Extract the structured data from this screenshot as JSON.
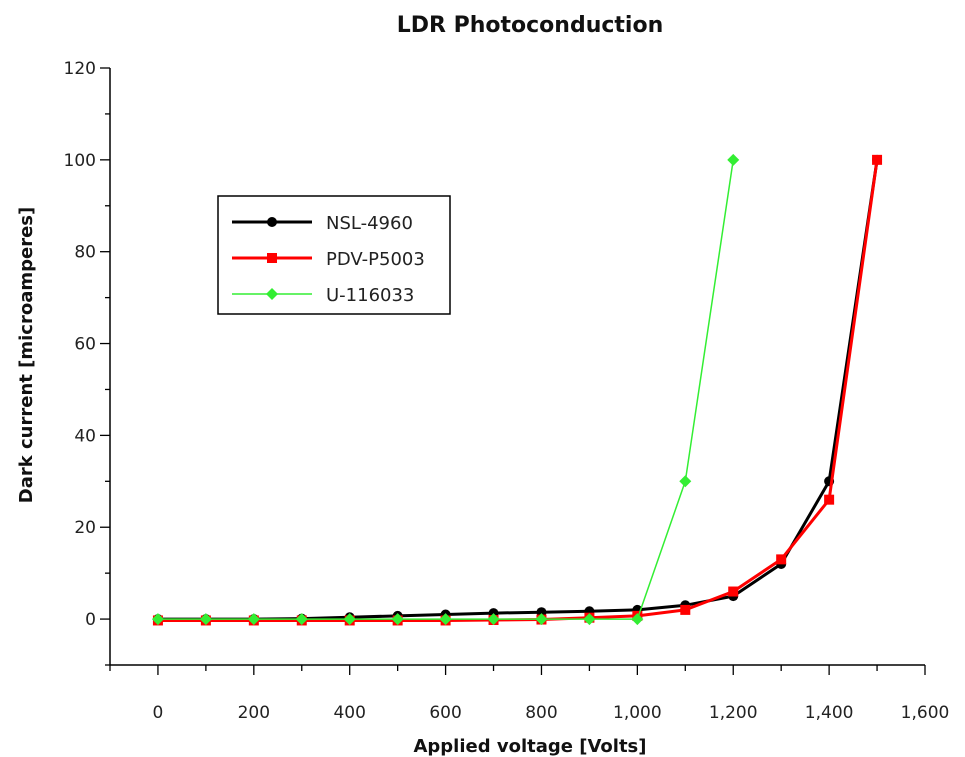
{
  "chart_data": {
    "type": "line",
    "title": "LDR Photoconduction",
    "xlabel": "Applied voltage [Volts]",
    "ylabel": "Dark current [microamperes]",
    "xlim": [
      -100,
      1600
    ],
    "ylim": [
      -10,
      120
    ],
    "x_ticks": [
      0,
      200,
      400,
      600,
      800,
      1000,
      1200,
      1400,
      1600
    ],
    "x_tick_labels": [
      "0",
      "200",
      "400",
      "600",
      "800",
      "1,000",
      "1,200",
      "1,400",
      "1,600"
    ],
    "y_ticks": [
      0,
      20,
      40,
      60,
      80,
      100,
      120
    ],
    "y_tick_labels": [
      "0",
      "20",
      "40",
      "60",
      "80",
      "100",
      "120"
    ],
    "grid": false,
    "legend_position": "upper-left",
    "series": [
      {
        "name": "NSL-4960",
        "color": "#000000",
        "marker": "circle",
        "x": [
          0,
          100,
          200,
          300,
          400,
          500,
          600,
          700,
          800,
          900,
          1000,
          1100,
          1200,
          1300,
          1400,
          1500
        ],
        "y": [
          0,
          0,
          0,
          0.1,
          0.4,
          0.7,
          1.0,
          1.3,
          1.5,
          1.7,
          2.0,
          3.0,
          5.0,
          12.0,
          30.0,
          100.0
        ]
      },
      {
        "name": "PDV-P5003",
        "color": "#ff0000",
        "marker": "square",
        "x": [
          0,
          100,
          200,
          300,
          400,
          500,
          600,
          700,
          800,
          900,
          1000,
          1100,
          1200,
          1300,
          1400,
          1500
        ],
        "y": [
          -0.3,
          -0.3,
          -0.3,
          -0.3,
          -0.3,
          -0.3,
          -0.3,
          -0.2,
          -0.1,
          0.3,
          0.7,
          2.0,
          6.0,
          13.0,
          26.0,
          100.0
        ]
      },
      {
        "name": "U-116033",
        "color": "#33ee33",
        "marker": "diamond",
        "x": [
          0,
          100,
          200,
          300,
          400,
          500,
          600,
          700,
          800,
          900,
          1000,
          1100,
          1200
        ],
        "y": [
          0,
          0,
          0,
          0,
          0,
          0,
          0,
          0,
          0,
          0,
          0,
          30.0,
          100.0
        ]
      }
    ]
  }
}
